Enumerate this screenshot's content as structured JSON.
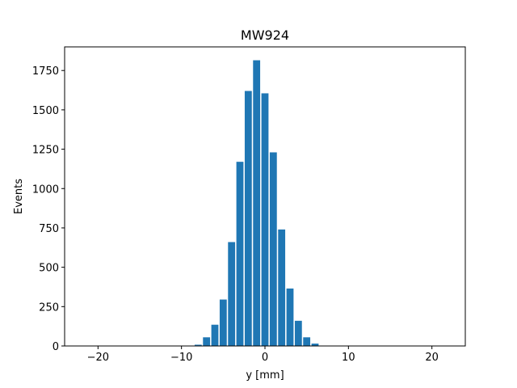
{
  "chart_data": {
    "type": "bar",
    "title": "MW924",
    "xlabel": "y [mm]",
    "ylabel": "Events",
    "xlim": [
      -24,
      24
    ],
    "ylim": [
      0,
      1900
    ],
    "xticks": [
      -20,
      -10,
      0,
      10,
      20
    ],
    "xtick_labels": [
      "−20",
      "−10",
      "0",
      "10",
      "20"
    ],
    "yticks": [
      0,
      250,
      500,
      750,
      1000,
      1250,
      1500,
      1750
    ],
    "ytick_labels": [
      "0",
      "250",
      "500",
      "750",
      "1000",
      "1250",
      "1500",
      "1750"
    ],
    "bar_width": 0.85,
    "x": [
      -8,
      -7,
      -6,
      -5,
      -4,
      -3,
      -2,
      -1,
      0,
      1,
      2,
      3,
      4,
      5,
      6,
      7
    ],
    "values": [
      8,
      55,
      135,
      295,
      660,
      1170,
      1620,
      1815,
      1605,
      1230,
      740,
      365,
      160,
      55,
      15,
      2
    ],
    "bar_color": "#1f77b4",
    "grid": false,
    "legend": "none"
  }
}
